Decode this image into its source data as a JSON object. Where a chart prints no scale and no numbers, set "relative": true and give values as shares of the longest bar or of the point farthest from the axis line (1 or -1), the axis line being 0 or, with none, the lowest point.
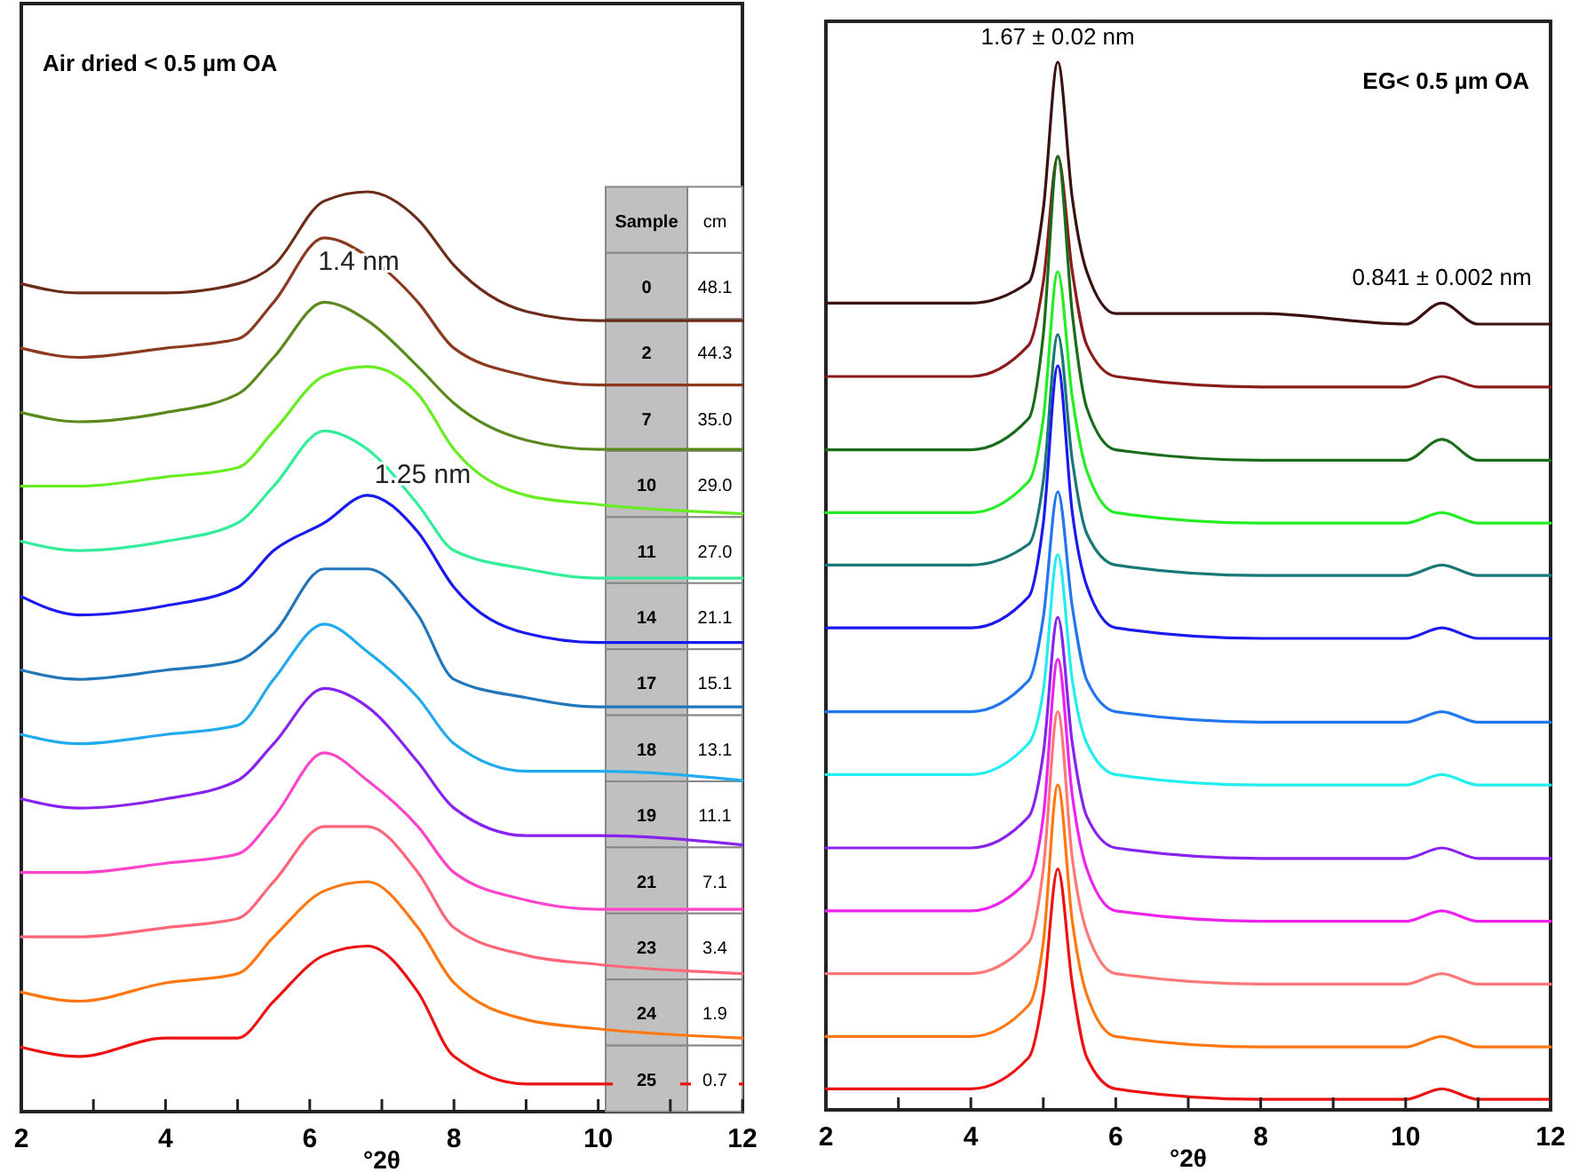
{
  "chart_data": [
    {
      "type": "line",
      "title": "Air dried < 0.5 µm OA",
      "xlabel": "°2θ",
      "relative": true,
      "xlim": [
        2,
        12
      ],
      "xticks": [
        2,
        {
          "value": 3,
          "label": null
        },
        4,
        {
          "value": 5,
          "label": null
        },
        6,
        {
          "value": 7,
          "label": null
        },
        8,
        {
          "value": 9,
          "label": null
        },
        10,
        {
          "value": 11,
          "label": null
        },
        12
      ],
      "x": [
        2,
        2.8,
        4,
        5,
        5.5,
        6.2,
        6.8,
        7.5,
        8,
        9,
        10,
        12
      ],
      "series": [
        {
          "color": "#6b2d1a",
          "values": [
            0.9,
            0.89,
            0.89,
            0.9,
            0.92,
            0.99,
            1.0,
            0.97,
            0.92,
            0.87,
            0.86,
            0.86
          ]
        },
        {
          "color": "#8b3a1e",
          "values": [
            0.83,
            0.82,
            0.83,
            0.84,
            0.88,
            0.95,
            0.93,
            0.88,
            0.83,
            0.8,
            0.79,
            0.79
          ]
        },
        {
          "color": "#5a8a1e",
          "values": [
            0.76,
            0.75,
            0.76,
            0.78,
            0.82,
            0.88,
            0.86,
            0.81,
            0.77,
            0.73,
            0.72,
            0.72
          ]
        },
        {
          "color": "#66ee22",
          "values": [
            0.68,
            0.68,
            0.69,
            0.7,
            0.74,
            0.8,
            0.81,
            0.78,
            0.72,
            0.67,
            0.66,
            0.65
          ]
        },
        {
          "color": "#33ee99",
          "values": [
            0.62,
            0.61,
            0.62,
            0.64,
            0.68,
            0.74,
            0.72,
            0.66,
            0.61,
            0.59,
            0.58,
            0.58
          ]
        },
        {
          "color": "#1a1aee",
          "values": [
            0.56,
            0.54,
            0.55,
            0.57,
            0.61,
            0.64,
            0.67,
            0.63,
            0.57,
            0.52,
            0.51,
            0.51
          ]
        },
        {
          "color": "#2277bb",
          "values": [
            0.48,
            0.47,
            0.48,
            0.49,
            0.52,
            0.59,
            0.59,
            0.54,
            0.47,
            0.45,
            0.44,
            0.44
          ]
        },
        {
          "color": "#22aaee",
          "values": [
            0.41,
            0.4,
            0.41,
            0.42,
            0.47,
            0.53,
            0.5,
            0.45,
            0.4,
            0.37,
            0.37,
            0.36
          ]
        },
        {
          "color": "#8822ee",
          "values": [
            0.34,
            0.33,
            0.34,
            0.36,
            0.4,
            0.46,
            0.44,
            0.38,
            0.33,
            0.3,
            0.3,
            0.29
          ]
        },
        {
          "color": "#ff44cc",
          "values": [
            0.26,
            0.26,
            0.27,
            0.28,
            0.32,
            0.39,
            0.36,
            0.31,
            0.26,
            0.23,
            0.22,
            0.22
          ]
        },
        {
          "color": "#ff6677",
          "values": [
            0.19,
            0.19,
            0.2,
            0.21,
            0.25,
            0.31,
            0.31,
            0.26,
            0.2,
            0.17,
            0.16,
            0.15
          ]
        },
        {
          "color": "#ff7711",
          "values": [
            0.13,
            0.12,
            0.14,
            0.15,
            0.19,
            0.24,
            0.25,
            0.2,
            0.14,
            0.1,
            0.09,
            0.08
          ]
        },
        {
          "color": "#ee1111",
          "values": [
            0.07,
            0.06,
            0.08,
            0.08,
            0.12,
            0.17,
            0.18,
            0.13,
            0.06,
            0.03,
            0.03,
            0.03
          ]
        }
      ],
      "annotations": [
        "1.4 nm",
        "1.25 nm",
        "Sample",
        "cm",
        "0",
        "48.1",
        "2",
        "44.3",
        "7",
        "35.0",
        "10",
        "29.0",
        "11",
        "27.0",
        "14",
        "21.1",
        "17",
        "15.1",
        "18",
        "13.1",
        "19",
        "11.1",
        "21",
        "7.1",
        "23",
        "3.4",
        "24",
        "1.9",
        "25",
        "0.7"
      ]
    },
    {
      "type": "line",
      "title": "EG< 0.5 µm OA",
      "xlabel": "°2θ",
      "relative": true,
      "xlim": [
        2,
        12
      ],
      "xticks": [
        2,
        {
          "value": 3,
          "label": null
        },
        4,
        {
          "value": 5,
          "label": null
        },
        6,
        {
          "value": 7,
          "label": null
        },
        8,
        {
          "value": 9,
          "label": null
        },
        10,
        {
          "value": 11,
          "label": null
        },
        12
      ],
      "x": [
        2,
        4,
        4.8,
        5.0,
        5.2,
        5.4,
        5.6,
        6,
        8,
        10,
        10.5,
        11,
        12
      ],
      "series": [
        {
          "color": "#3a1010",
          "values": [
            0.77,
            0.77,
            0.79,
            0.86,
            1.0,
            0.87,
            0.8,
            0.76,
            0.76,
            0.75,
            0.77,
            0.75,
            0.75
          ]
        },
        {
          "color": "#8b1a1a",
          "values": [
            0.7,
            0.7,
            0.73,
            0.79,
            0.91,
            0.8,
            0.73,
            0.7,
            0.69,
            0.69,
            0.7,
            0.69,
            0.69
          ]
        },
        {
          "color": "#1a6b1a",
          "values": [
            0.63,
            0.63,
            0.66,
            0.74,
            0.91,
            0.76,
            0.67,
            0.63,
            0.62,
            0.62,
            0.64,
            0.62,
            0.62
          ]
        },
        {
          "color": "#22ee22",
          "values": [
            0.57,
            0.57,
            0.6,
            0.66,
            0.8,
            0.68,
            0.61,
            0.57,
            0.56,
            0.56,
            0.57,
            0.56,
            0.56
          ]
        },
        {
          "color": "#1a7777",
          "values": [
            0.52,
            0.52,
            0.54,
            0.6,
            0.74,
            0.62,
            0.55,
            0.52,
            0.51,
            0.51,
            0.52,
            0.51,
            0.51
          ]
        },
        {
          "color": "#1a1aee",
          "values": [
            0.46,
            0.46,
            0.49,
            0.56,
            0.71,
            0.57,
            0.5,
            0.46,
            0.45,
            0.45,
            0.46,
            0.45,
            0.45
          ]
        },
        {
          "color": "#2277ee",
          "values": [
            0.38,
            0.38,
            0.41,
            0.47,
            0.59,
            0.48,
            0.41,
            0.38,
            0.37,
            0.37,
            0.38,
            0.37,
            0.37
          ]
        },
        {
          "color": "#22eeee",
          "values": [
            0.32,
            0.32,
            0.35,
            0.4,
            0.53,
            0.41,
            0.35,
            0.32,
            0.31,
            0.31,
            0.32,
            0.31,
            0.31
          ]
        },
        {
          "color": "#8822ee",
          "values": [
            0.25,
            0.25,
            0.28,
            0.34,
            0.47,
            0.35,
            0.28,
            0.25,
            0.24,
            0.24,
            0.25,
            0.24,
            0.24
          ]
        },
        {
          "color": "#ee22ee",
          "values": [
            0.19,
            0.19,
            0.22,
            0.28,
            0.43,
            0.3,
            0.23,
            0.19,
            0.18,
            0.18,
            0.19,
            0.18,
            0.18
          ]
        },
        {
          "color": "#ff7777",
          "values": [
            0.13,
            0.13,
            0.16,
            0.23,
            0.38,
            0.24,
            0.17,
            0.13,
            0.12,
            0.12,
            0.13,
            0.12,
            0.12
          ]
        },
        {
          "color": "#ff7711",
          "values": [
            0.07,
            0.07,
            0.1,
            0.16,
            0.31,
            0.18,
            0.11,
            0.07,
            0.06,
            0.06,
            0.07,
            0.06,
            0.06
          ]
        },
        {
          "color": "#ee1111",
          "values": [
            0.02,
            0.02,
            0.05,
            0.11,
            0.23,
            0.12,
            0.05,
            0.02,
            0.01,
            0.01,
            0.02,
            0.01,
            0.01
          ]
        }
      ],
      "annotations": [
        {
          "text": "1.67 ± 0.02 nm",
          "x": 5.2,
          "y": 1.0
        },
        {
          "text": "0.841 ± 0.002 nm",
          "x": 10.5,
          "y": 0.77
        }
      ]
    }
  ]
}
